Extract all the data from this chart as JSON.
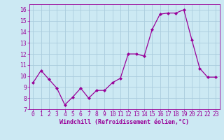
{
  "x": [
    0,
    1,
    2,
    3,
    4,
    5,
    6,
    7,
    8,
    9,
    10,
    11,
    12,
    13,
    14,
    15,
    16,
    17,
    18,
    19,
    20,
    21,
    22,
    23
  ],
  "y": [
    9.4,
    10.5,
    9.7,
    8.9,
    7.4,
    8.1,
    8.9,
    8.0,
    8.7,
    8.7,
    9.4,
    9.8,
    12.0,
    12.0,
    11.8,
    14.2,
    15.6,
    15.7,
    15.7,
    16.0,
    13.3,
    10.7,
    9.9,
    9.9
  ],
  "line_color": "#990099",
  "marker": "D",
  "marker_size": 2.0,
  "bg_color": "#cce9f3",
  "grid_color": "#aaccdd",
  "xlabel": "Windchill (Refroidissement éolien,°C)",
  "ylim": [
    7,
    16.5
  ],
  "xlim": [
    -0.5,
    23.5
  ],
  "yticks": [
    7,
    8,
    9,
    10,
    11,
    12,
    13,
    14,
    15,
    16
  ],
  "xticks": [
    0,
    1,
    2,
    3,
    4,
    5,
    6,
    7,
    8,
    9,
    10,
    11,
    12,
    13,
    14,
    15,
    16,
    17,
    18,
    19,
    20,
    21,
    22,
    23
  ],
  "tick_color": "#990099",
  "label_color": "#990099",
  "font_size_xlabel": 6.0,
  "font_size_ticks": 5.8
}
